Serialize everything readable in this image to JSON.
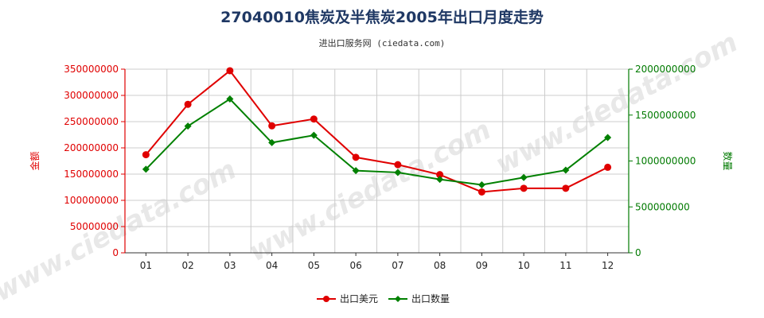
{
  "chart_data": {
    "type": "line",
    "title": "27040010焦炭及半焦炭2005年出口月度走势",
    "subtitle": "进出口服务网 (ciedata.com)",
    "watermark": "www.ciedata.com",
    "categories": [
      "01",
      "02",
      "03",
      "04",
      "05",
      "06",
      "07",
      "08",
      "09",
      "10",
      "11",
      "12"
    ],
    "y_left": {
      "label": "金额",
      "ylim": [
        0,
        350000000
      ],
      "ticks": [
        0,
        50000000,
        100000000,
        150000000,
        200000000,
        250000000,
        300000000,
        350000000
      ],
      "tick_labels": [
        "0",
        "50000000",
        "100000000",
        "150000000",
        "200000000",
        "250000000",
        "300000000",
        "350000000"
      ],
      "color": "#e00000"
    },
    "y_right": {
      "label": "数量",
      "ylim": [
        0,
        2000000000
      ],
      "ticks": [
        0,
        500000000,
        1000000000,
        1500000000,
        2000000000
      ],
      "tick_labels": [
        "0",
        "500000000",
        "1000000000",
        "1500000000",
        "2000000000"
      ],
      "color": "#007a00"
    },
    "series": [
      {
        "name": "出口美元",
        "axis": "left",
        "color": "#e00000",
        "values": [
          187000000,
          283000000,
          347000000,
          242000000,
          255000000,
          182000000,
          168000000,
          149000000,
          116000000,
          123000000,
          123000000,
          163000000
        ]
      },
      {
        "name": "出口数量",
        "axis": "right",
        "color": "#008000",
        "values": [
          910000000,
          1380000000,
          1675000000,
          1200000000,
          1280000000,
          895000000,
          875000000,
          800000000,
          740000000,
          820000000,
          900000000,
          1255000000
        ]
      }
    ],
    "grid": true,
    "legend_position": "bottom"
  }
}
